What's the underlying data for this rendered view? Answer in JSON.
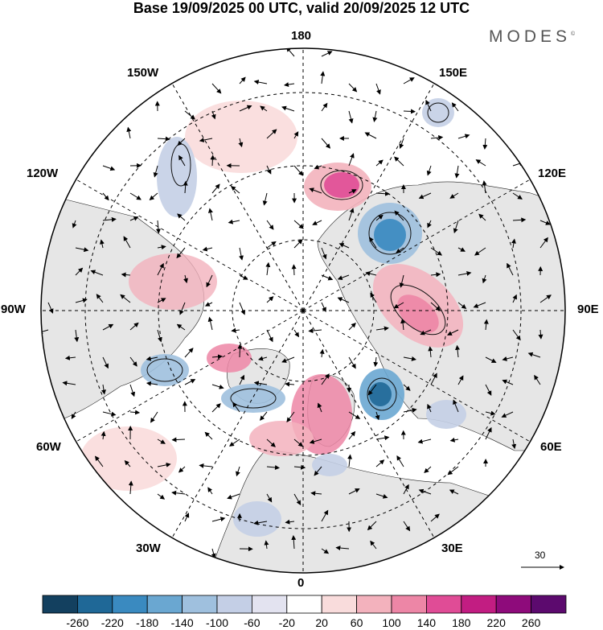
{
  "title": "Base 19/09/2025 00 UTC, valid 20/09/2025 12 UTC",
  "brand": "MODES",
  "brand_mark": "©",
  "longitude_labels": {
    "n": "180",
    "s": "0",
    "e": "90E",
    "w": "90W",
    "ne1": "150E",
    "ne2": "120E",
    "nw1": "150W",
    "nw2": "120W",
    "se1": "60E",
    "se2": "30E",
    "sw1": "60W",
    "sw2": "30W"
  },
  "reference_vector": "30",
  "colorbar": {
    "ticks": [
      "-260",
      "-220",
      "-180",
      "-140",
      "-100",
      "-60",
      "-20",
      "20",
      "60",
      "100",
      "140",
      "180",
      "220",
      "260"
    ],
    "colors": [
      "#13405f",
      "#1f6897",
      "#3a8ac0",
      "#6aa7d1",
      "#9fc0de",
      "#c4cfe6",
      "#e3e3f0",
      "#ffffff",
      "#f9dcdc",
      "#f3b2bd",
      "#ed86a6",
      "#e04c96",
      "#c21d82",
      "#8e0b7b",
      "#5c0a6e"
    ]
  },
  "colors": {
    "land": "#e8e8e8",
    "ocean": "#ffffff",
    "ice": "#ffffff"
  }
}
